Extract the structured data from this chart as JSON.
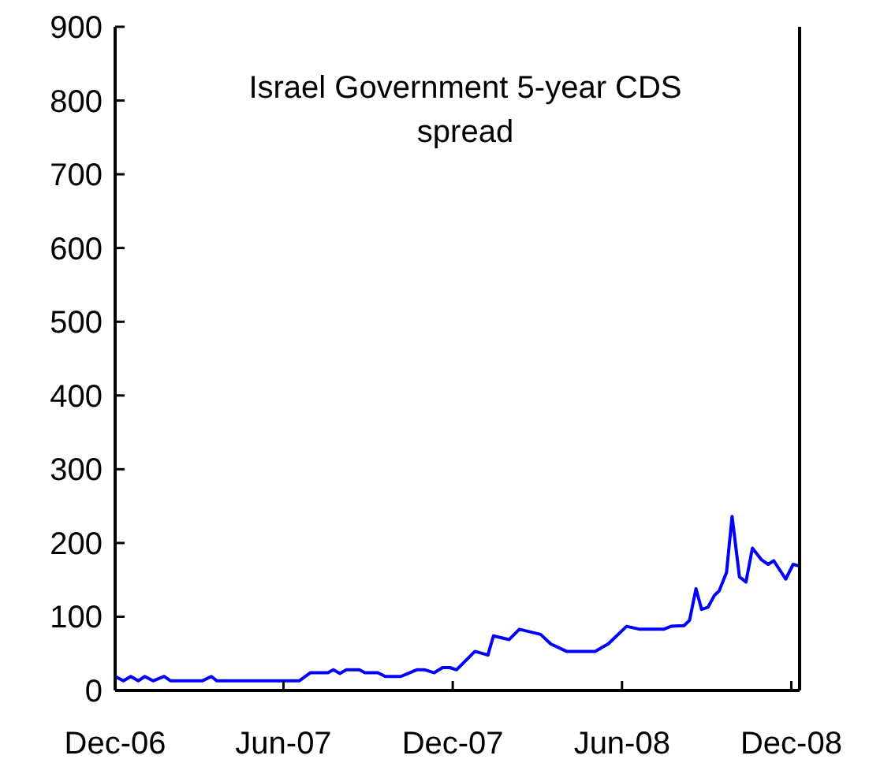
{
  "chart_data": {
    "type": "line",
    "title": "Israel Government 5-year CDS spread",
    "x": [
      "2006-12-01",
      "2006-12-10",
      "2006-12-18",
      "2006-12-26",
      "2007-01-02",
      "2007-01-11",
      "2007-01-23",
      "2007-01-30",
      "2007-03-05",
      "2007-03-15",
      "2007-03-21",
      "2007-06-18",
      "2007-06-30",
      "2007-07-19",
      "2007-07-25",
      "2007-08-01",
      "2007-08-08",
      "2007-08-22",
      "2007-08-28",
      "2007-09-11",
      "2007-09-19",
      "2007-10-06",
      "2007-10-23",
      "2007-11-01",
      "2007-11-11",
      "2007-11-20",
      "2007-11-28",
      "2007-12-05",
      "2007-12-25",
      "2008-01-08",
      "2008-01-14",
      "2008-01-31",
      "2008-02-11",
      "2008-03-05",
      "2008-03-16",
      "2008-04-02",
      "2008-05-03",
      "2008-05-17",
      "2008-06-06",
      "2008-06-20",
      "2008-07-16",
      "2008-07-24",
      "2008-08-07",
      "2008-08-13",
      "2008-08-20",
      "2008-08-26",
      "2008-09-02",
      "2008-09-09",
      "2008-09-14",
      "2008-09-22",
      "2008-09-28",
      "2008-10-06",
      "2008-10-13",
      "2008-10-20",
      "2008-10-30",
      "2008-11-06",
      "2008-11-12",
      "2008-11-25",
      "2008-12-03",
      "2008-12-09"
    ],
    "series": [
      {
        "color": "#0000ff",
        "values": [
          19,
          13,
          19,
          13,
          19,
          13,
          19,
          13,
          13,
          19,
          13,
          13,
          24,
          24,
          28,
          23,
          28,
          28,
          24,
          24,
          19,
          19,
          28,
          28,
          24,
          31,
          31,
          28,
          53,
          48,
          74,
          69,
          83,
          76,
          63,
          53,
          53,
          63,
          87,
          83,
          83,
          87,
          88,
          95,
          138,
          110,
          113,
          129,
          135,
          160,
          236,
          154,
          147,
          193,
          177,
          171,
          176,
          151,
          171,
          169
        ]
      }
    ],
    "xlim": [
      "2006-12-01",
      "2008-12-10"
    ],
    "xticks": [
      {
        "value": "2006-12-01",
        "label": "Dec-06"
      },
      {
        "value": "2007-06-01",
        "label": "Jun-07"
      },
      {
        "value": "2007-12-01",
        "label": "Dec-07"
      },
      {
        "value": "2008-06-01",
        "label": "Jun-08"
      },
      {
        "value": "2008-12-01",
        "label": "Dec-08"
      }
    ],
    "ylim": [
      0,
      900
    ],
    "yticks": [
      0,
      100,
      200,
      300,
      400,
      500,
      600,
      700,
      800,
      900
    ],
    "grid": false,
    "marker": "none",
    "line_style": "solid"
  }
}
